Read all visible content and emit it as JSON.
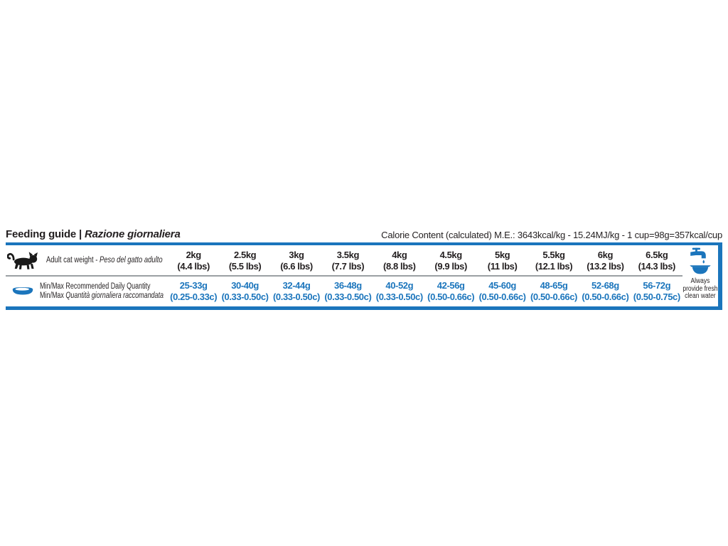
{
  "header": {
    "title_en": "Feeding guide",
    "title_sep": " | ",
    "title_it": "Razione giornaliera",
    "calorie_info": "Calorie Content (calculated) M.E.: 3643kcal/kg - 15.24MJ/kg - 1 cup=98g=357kcal/cup"
  },
  "rows": {
    "weight": {
      "icon": "cat-icon",
      "label_en": "Adult cat weight",
      "label_sep": " - ",
      "label_it": "Peso del gatto adulto"
    },
    "quantity": {
      "icon": "food-bowl-icon",
      "label_line1": "Min/Max Recommended Daily Quantity",
      "label_line2_prefix": "Min/Max ",
      "label_line2_it": "Quantità giornaliera raccomandata"
    }
  },
  "columns": [
    {
      "weight_kg": "2kg",
      "weight_lbs": "(4.4 lbs)",
      "grams": "25-33g",
      "cups": "(0.25-0.33c)"
    },
    {
      "weight_kg": "2.5kg",
      "weight_lbs": "(5.5 lbs)",
      "grams": "30-40g",
      "cups": "(0.33-0.50c)"
    },
    {
      "weight_kg": "3kg",
      "weight_lbs": "(6.6 lbs)",
      "grams": "32-44g",
      "cups": "(0.33-0.50c)"
    },
    {
      "weight_kg": "3.5kg",
      "weight_lbs": "(7.7 lbs)",
      "grams": "36-48g",
      "cups": "(0.33-0.50c)"
    },
    {
      "weight_kg": "4kg",
      "weight_lbs": "(8.8 lbs)",
      "grams": "40-52g",
      "cups": "(0.33-0.50c)"
    },
    {
      "weight_kg": "4.5kg",
      "weight_lbs": "(9.9 lbs)",
      "grams": "42-56g",
      "cups": "(0.50-0.66c)"
    },
    {
      "weight_kg": "5kg",
      "weight_lbs": "(11 lbs)",
      "grams": "45-60g",
      "cups": "(0.50-0.66c)"
    },
    {
      "weight_kg": "5.5kg",
      "weight_lbs": "(12.1 lbs)",
      "grams": "48-65g",
      "cups": "(0.50-0.66c)"
    },
    {
      "weight_kg": "6kg",
      "weight_lbs": "(13.2 lbs)",
      "grams": "52-68g",
      "cups": "(0.50-0.66c)"
    },
    {
      "weight_kg": "6.5kg",
      "weight_lbs": "(14.3 lbs)",
      "grams": "56-72g",
      "cups": "(0.50-0.75c)"
    }
  ],
  "water_note": {
    "icon": "faucet-water-bowl-icon",
    "lines": [
      "Always",
      "provide fresh",
      "clean water"
    ]
  },
  "colors": {
    "accent_blue": "#1b75bc",
    "divider_gray": "#9aa0a3",
    "text_black": "#231f20"
  }
}
